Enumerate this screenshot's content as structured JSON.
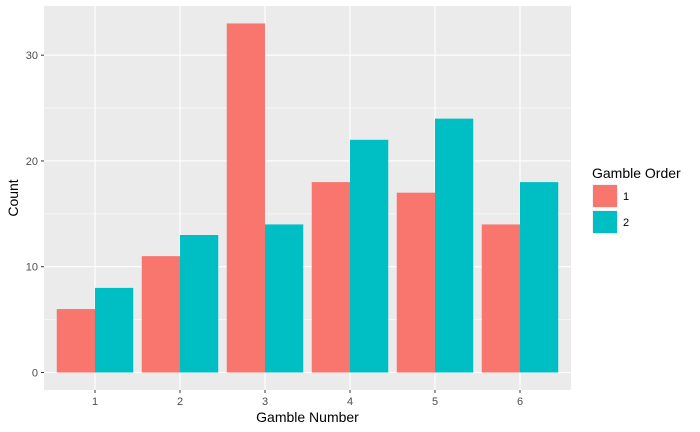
{
  "chart_data": {
    "type": "bar",
    "xlabel": "Gamble Number",
    "ylabel": "Count",
    "categories": [
      "1",
      "2",
      "3",
      "4",
      "5",
      "6"
    ],
    "series": [
      {
        "name": "1",
        "color": "#F8766D",
        "values": [
          6,
          11,
          33,
          18,
          17,
          14
        ]
      },
      {
        "name": "2",
        "color": "#00BFC4",
        "values": [
          8,
          13,
          14,
          22,
          24,
          18
        ]
      }
    ],
    "ylim": [
      0,
      34.65
    ],
    "yticks": [
      0,
      10,
      20,
      30
    ],
    "legend": {
      "title": "Gamble Order",
      "position": "right"
    },
    "grid": true,
    "panel_background": "#EBEBEB",
    "grid_color": "#FFFFFF"
  }
}
